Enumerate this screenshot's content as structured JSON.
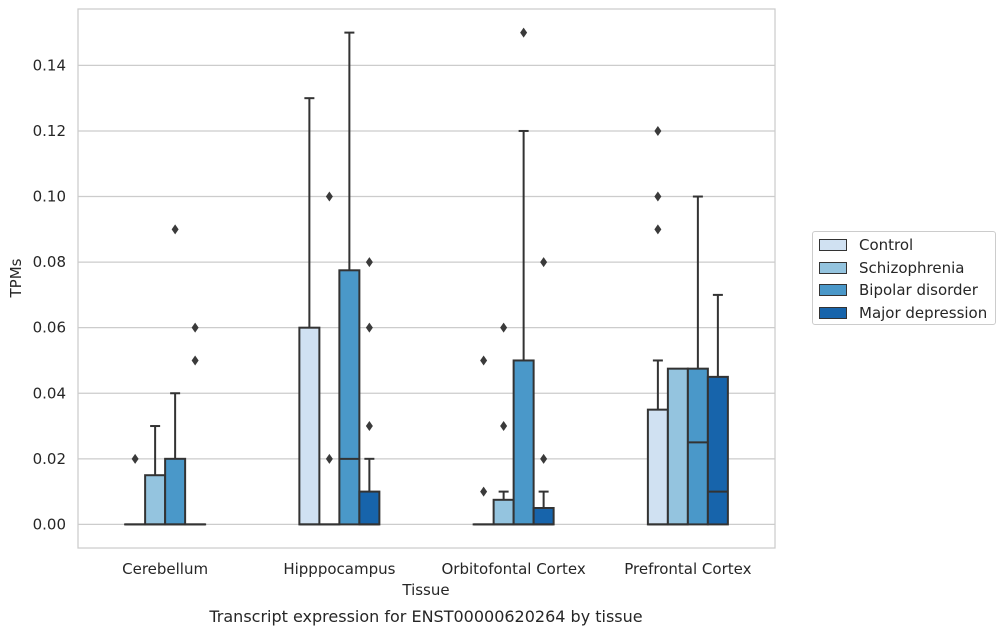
{
  "chart_data": {
    "type": "box",
    "title": "Transcript expression for ENST00000620264 by tissue",
    "xlabel": "Tissue",
    "ylabel": "TPMs",
    "ylim": [
      -0.0072,
      0.1572
    ],
    "yticks": [
      0.0,
      0.02,
      0.04,
      0.06,
      0.08,
      0.1,
      0.12,
      0.14
    ],
    "ytick_labels": [
      "0.00",
      "0.02",
      "0.04",
      "0.06",
      "0.08",
      "0.10",
      "0.12",
      "0.14"
    ],
    "grid": "horizontal",
    "legend_position": "right",
    "categories": [
      "Cerebellum",
      "Hipppocampus",
      "Orbitofontal Cortex",
      "Prefrontal Cortex"
    ],
    "series": [
      {
        "name": "Control",
        "color": "#d0e1f2",
        "boxes": [
          {
            "q1": 0.0,
            "median": 0.0,
            "q3": 0.0,
            "whisker_low": 0.0,
            "whisker_high": 0.0,
            "outliers": [
              0.02
            ]
          },
          {
            "q1": 0.0,
            "median": 0.0,
            "q3": 0.06,
            "whisker_low": 0.0,
            "whisker_high": 0.13,
            "outliers": []
          },
          {
            "q1": 0.0,
            "median": 0.0,
            "q3": 0.0,
            "whisker_low": 0.0,
            "whisker_high": 0.0,
            "outliers": [
              0.01,
              0.05
            ]
          },
          {
            "q1": 0.0,
            "median": 0.0,
            "q3": 0.035,
            "whisker_low": 0.0,
            "whisker_high": 0.05,
            "outliers": [
              0.09,
              0.1,
              0.12
            ]
          }
        ]
      },
      {
        "name": "Schizophrenia",
        "color": "#94c4df",
        "boxes": [
          {
            "q1": 0.0,
            "median": 0.0,
            "q3": 0.015,
            "whisker_low": 0.0,
            "whisker_high": 0.03,
            "outliers": []
          },
          {
            "q1": 0.0,
            "median": 0.0,
            "q3": 0.0,
            "whisker_low": 0.0,
            "whisker_high": 0.0,
            "outliers": [
              0.02,
              0.1
            ]
          },
          {
            "q1": 0.0,
            "median": 0.0,
            "q3": 0.0075,
            "whisker_low": 0.0,
            "whisker_high": 0.01,
            "outliers": [
              0.03,
              0.06
            ]
          },
          {
            "q1": 0.0,
            "median": 0.0,
            "q3": 0.0475,
            "whisker_low": 0.0,
            "whisker_high": 0.0475,
            "outliers": []
          }
        ]
      },
      {
        "name": "Bipolar disorder",
        "color": "#4a98c9",
        "boxes": [
          {
            "q1": 0.0,
            "median": 0.0,
            "q3": 0.02,
            "whisker_low": 0.0,
            "whisker_high": 0.04,
            "outliers": [
              0.09
            ]
          },
          {
            "q1": 0.0,
            "median": 0.02,
            "q3": 0.0775,
            "whisker_low": 0.0,
            "whisker_high": 0.15,
            "outliers": []
          },
          {
            "q1": 0.0,
            "median": 0.0,
            "q3": 0.05,
            "whisker_low": 0.0,
            "whisker_high": 0.12,
            "outliers": [
              0.15
            ]
          },
          {
            "q1": 0.0,
            "median": 0.025,
            "q3": 0.0475,
            "whisker_low": 0.0,
            "whisker_high": 0.1,
            "outliers": []
          }
        ]
      },
      {
        "name": "Major depression",
        "color": "#1764ab",
        "boxes": [
          {
            "q1": 0.0,
            "median": 0.0,
            "q3": 0.0,
            "whisker_low": 0.0,
            "whisker_high": 0.0,
            "outliers": [
              0.05,
              0.06
            ]
          },
          {
            "q1": 0.0,
            "median": 0.0,
            "q3": 0.01,
            "whisker_low": 0.0,
            "whisker_high": 0.02,
            "outliers": [
              0.03,
              0.06,
              0.08
            ]
          },
          {
            "q1": 0.0,
            "median": 0.0,
            "q3": 0.005,
            "whisker_low": 0.0,
            "whisker_high": 0.01,
            "outliers": [
              0.02,
              0.08
            ]
          },
          {
            "q1": 0.0,
            "median": 0.01,
            "q3": 0.045,
            "whisker_low": 0.0,
            "whisker_high": 0.07,
            "outliers": []
          }
        ]
      }
    ]
  }
}
